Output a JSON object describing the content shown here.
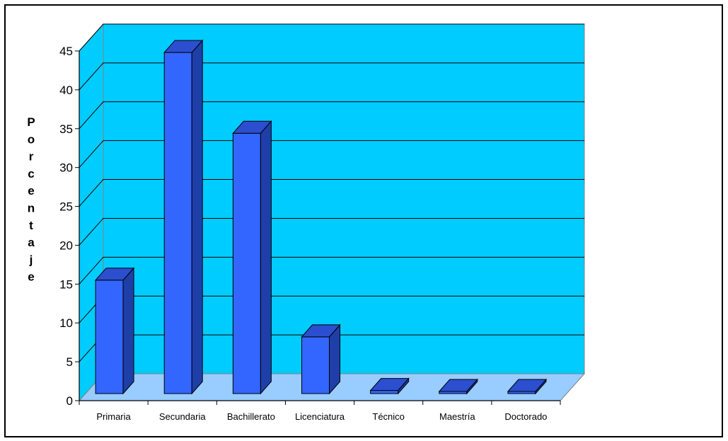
{
  "chart_data": {
    "type": "bar",
    "categories": [
      "Primaria",
      "Secundaria",
      "Bachillerato",
      "Licenciatura",
      "Técnico",
      "Maestría",
      "Doctorado"
    ],
    "values": [
      14.6,
      43.9,
      33.5,
      7.3,
      0.4,
      0,
      0
    ],
    "title": "",
    "xlabel": "",
    "ylabel": "Porcentaje",
    "ylim": [
      0,
      45
    ],
    "yticks": [
      0,
      5,
      10,
      15,
      20,
      25,
      30,
      35,
      40,
      45
    ],
    "grid": true,
    "legend": "none",
    "colors": {
      "plot_back": "#00ccff",
      "floor": "#99ccff",
      "bar_front": "#3366ff",
      "bar_side": "#1f3fa8",
      "bar_top": "#2b4fcf",
      "grid": "#000000"
    }
  }
}
